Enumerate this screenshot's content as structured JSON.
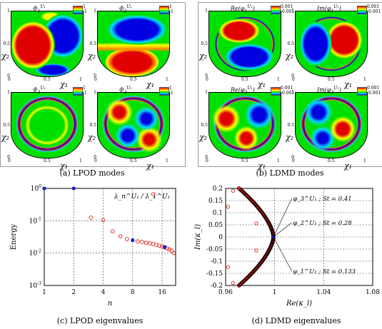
{
  "figure": {
    "captions": {
      "a": "(a) LPOD modes",
      "b": "(b) LDMD modes",
      "c": "(c) LPOD eigenvalues",
      "d": "(d) LDMD eigenvalues"
    },
    "lpod_tiles": [
      {
        "title": "Φ",
        "sub": "1",
        "sup": "U₁",
        "legend_hi": "1",
        "legend_lo": "-1"
      },
      {
        "title": "Φ",
        "sub": "2",
        "sup": "U₁",
        "legend_hi": "1",
        "legend_lo": "-1"
      },
      {
        "title": "Φ",
        "sub": "3",
        "sup": "U₁",
        "legend_hi": "1",
        "legend_lo": "-1"
      },
      {
        "title": "Φ",
        "sub": "4",
        "sup": "U₁",
        "legend_hi": "1",
        "legend_lo": "-1"
      }
    ],
    "ldmd_tiles": [
      {
        "title": "Re(φ",
        "sub": "1",
        "sup": "U₁",
        "close": ")",
        "legend_hi": "0.001",
        "legend_lo": "-0.001"
      },
      {
        "title": "Im(φ",
        "sub": "1",
        "sup": "U₁",
        "close": ")",
        "legend_hi": "0.001",
        "legend_lo": "-0.001"
      },
      {
        "title": "Re(φ",
        "sub": "3",
        "sup": "U₁",
        "close": ")",
        "legend_hi": "0.001",
        "legend_lo": "-0.001"
      },
      {
        "title": "Im(φ",
        "sub": "3",
        "sup": "U₁",
        "close": ")",
        "legend_hi": "0.001",
        "legend_lo": "-0.001"
      }
    ],
    "tile_axes": {
      "x_label": "χ₁",
      "y_label": "χ₂",
      "x_ticks": [
        "0",
        "0.5",
        "1"
      ],
      "y_ticks": [
        "0",
        "0.5",
        "1"
      ]
    }
  },
  "chart_data": [
    {
      "type": "scatter",
      "id": "lpod-eigenvalues",
      "title": "",
      "annotation": "λ_n^U₁ / λ_1^U₁",
      "xlabel": "n",
      "ylabel": "Energy",
      "xscale": "log2",
      "yscale": "log10",
      "xlim": [
        1,
        22
      ],
      "ylim": [
        0.001,
        1
      ],
      "x_ticks": [
        "1",
        "2",
        "4",
        "8",
        "16"
      ],
      "y_ticks": [
        "10^0",
        "10^-1",
        "10^-2",
        "10^-3"
      ],
      "grid": "dashed",
      "series": [
        {
          "color": "#e0201a",
          "x": [
            3,
            4,
            5,
            6,
            7,
            9,
            10,
            11,
            12,
            13,
            14,
            15,
            16,
            17,
            18,
            19,
            20,
            21
          ],
          "y": [
            0.125,
            0.105,
            0.047,
            0.033,
            0.027,
            0.023,
            0.022,
            0.021,
            0.02,
            0.019,
            0.018,
            0.017,
            0.016,
            0.015,
            0.014,
            0.013,
            0.012,
            0.01
          ]
        },
        {
          "color": "#e0201a",
          "x": [
            13
          ],
          "y": [
            0.66
          ]
        },
        {
          "color": "#2020d0",
          "marker": "filled",
          "x": [
            1,
            2,
            8,
            17
          ],
          "y": [
            1,
            1,
            0.025,
            0.0155
          ]
        }
      ]
    },
    {
      "type": "scatter",
      "id": "ldmd-eigenvalues",
      "title": "",
      "xlabel": "Re(κ_l)",
      "ylabel": "Im(κ_l)",
      "xlim": [
        0.96,
        1.08
      ],
      "ylim": [
        -0.2,
        0.2
      ],
      "x_ticks": [
        "0.96",
        "1",
        "1.04",
        "1.08"
      ],
      "y_ticks": [
        "0.2",
        "0.15",
        "0.1",
        "0.05",
        "0",
        "-0.05",
        "-0.1",
        "-0.15",
        "-0.2"
      ],
      "grid": "dashed",
      "annotations": [
        {
          "text": "φ_3^U₁ ; St = 0.41",
          "target": [
            0.999,
            0.007
          ]
        },
        {
          "text": "φ_2^U₁ ; St = 0.28",
          "target": [
            0.999,
            0.004
          ]
        },
        {
          "text": "φ_1^U₁ ; St = 0.133",
          "target": [
            0.999,
            0.002
          ]
        }
      ],
      "outliers": {
        "color": "#e0201a",
        "points": [
          [
            0.962,
            0.124
          ],
          [
            0.962,
            -0.124
          ],
          [
            0.966,
            0.19
          ],
          [
            0.966,
            -0.19
          ],
          [
            0.985,
            0.056
          ],
          [
            0.985,
            -0.056
          ]
        ]
      },
      "curve": {
        "color": "#e0201a",
        "outline": "#000000",
        "re_min": 0.971,
        "re_max": 0.999,
        "im_max": 0.2
      }
    }
  ]
}
